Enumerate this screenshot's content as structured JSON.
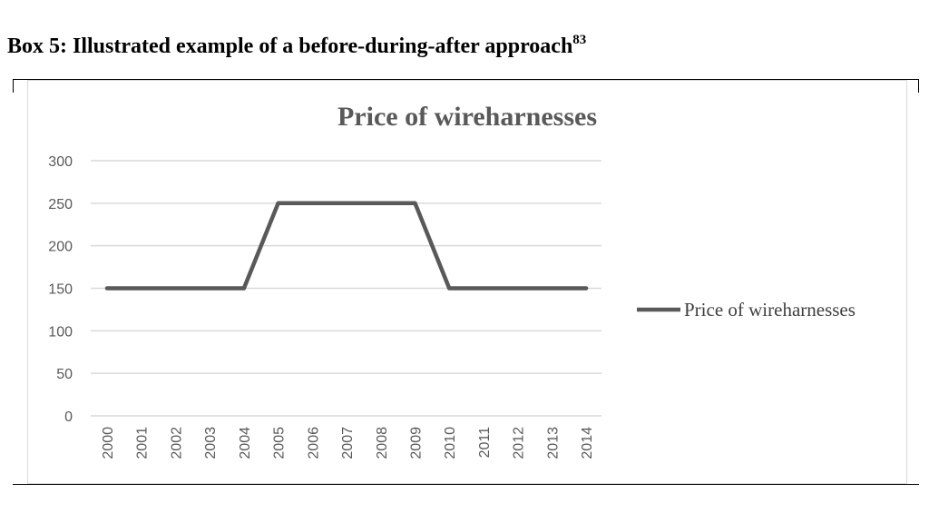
{
  "box": {
    "title": "Box 5: Illustrated example of a before-during-after approach",
    "footnote": "83"
  },
  "chart_data": {
    "type": "line",
    "title": "Price of wireharnesses",
    "categories": [
      "2000",
      "2001",
      "2002",
      "2003",
      "2004",
      "2005",
      "2006",
      "2007",
      "2008",
      "2009",
      "2010",
      "2011",
      "2012",
      "2013",
      "2014"
    ],
    "series": [
      {
        "name": "Price of wireharnesses",
        "values": [
          150,
          150,
          150,
          150,
          150,
          250,
          250,
          250,
          250,
          250,
          150,
          150,
          150,
          150,
          150
        ]
      }
    ],
    "ylim": [
      0,
      300
    ],
    "yticks": [
      0,
      50,
      100,
      150,
      200,
      250,
      300
    ],
    "grid": true,
    "legend": "right",
    "colors": {
      "line": "#595959",
      "grid": "#d9d9d9"
    }
  }
}
